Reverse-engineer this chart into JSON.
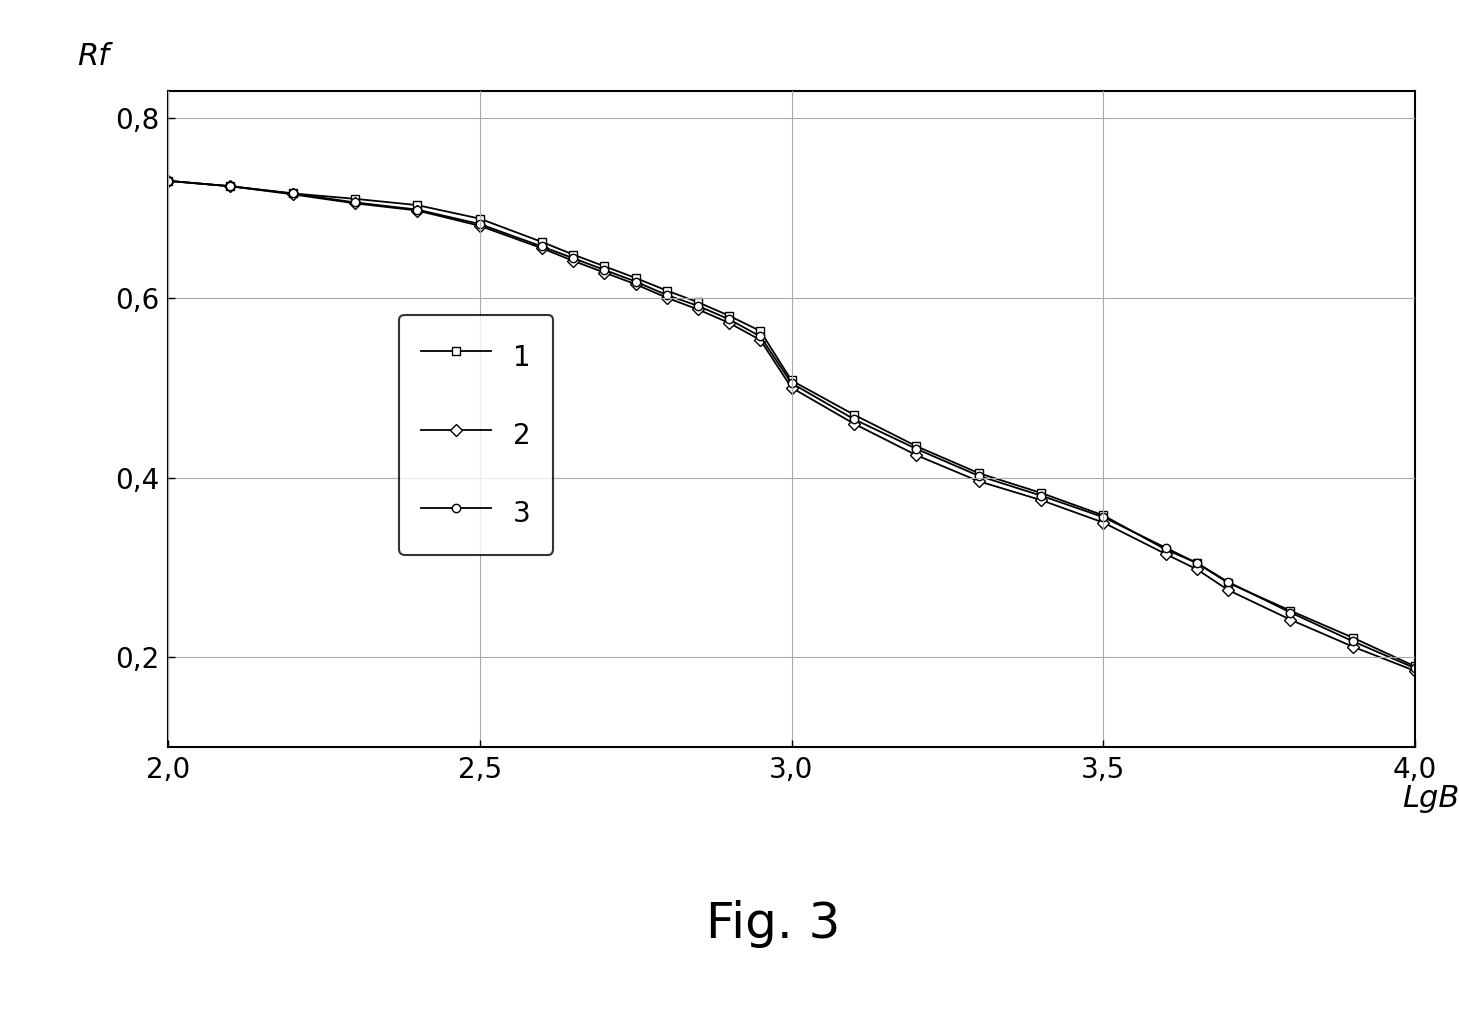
{
  "title": "Fig. 3",
  "xlabel": "LgBP",
  "ylabel": "Rf",
  "xlim": [
    2.0,
    4.0
  ],
  "ylim": [
    0.1,
    0.83
  ],
  "xticks": [
    2.0,
    2.5,
    3.0,
    3.5,
    4.0
  ],
  "yticks": [
    0.2,
    0.4,
    0.6,
    0.8
  ],
  "xtick_labels": [
    "2,0",
    "2,5",
    "3,0",
    "3,5",
    "4,0"
  ],
  "ytick_labels": [
    "0,2",
    "0,4",
    "0,6",
    "0,8"
  ],
  "line1_x": [
    2.0,
    2.1,
    2.2,
    2.3,
    2.4,
    2.5,
    2.6,
    2.65,
    2.7,
    2.75,
    2.8,
    2.85,
    2.9,
    2.95,
    3.0,
    3.1,
    3.2,
    3.3,
    3.4,
    3.5,
    3.6,
    3.65,
    3.7,
    3.8,
    3.9,
    4.0
  ],
  "line1_y": [
    0.73,
    0.724,
    0.716,
    0.71,
    0.703,
    0.688,
    0.662,
    0.648,
    0.635,
    0.622,
    0.608,
    0.595,
    0.58,
    0.563,
    0.508,
    0.47,
    0.435,
    0.405,
    0.383,
    0.358,
    0.32,
    0.305,
    0.283,
    0.252,
    0.222,
    0.19
  ],
  "line2_x": [
    2.0,
    2.1,
    2.2,
    2.3,
    2.4,
    2.5,
    2.6,
    2.65,
    2.7,
    2.75,
    2.8,
    2.85,
    2.9,
    2.95,
    3.0,
    3.1,
    3.2,
    3.3,
    3.4,
    3.5,
    3.6,
    3.65,
    3.7,
    3.8,
    3.9,
    4.0
  ],
  "line2_y": [
    0.73,
    0.724,
    0.715,
    0.705,
    0.697,
    0.68,
    0.655,
    0.641,
    0.628,
    0.615,
    0.6,
    0.587,
    0.572,
    0.553,
    0.5,
    0.46,
    0.425,
    0.396,
    0.375,
    0.35,
    0.315,
    0.298,
    0.275,
    0.242,
    0.212,
    0.185
  ],
  "line3_x": [
    2.0,
    2.1,
    2.2,
    2.3,
    2.4,
    2.5,
    2.6,
    2.65,
    2.7,
    2.75,
    2.8,
    2.85,
    2.9,
    2.95,
    3.0,
    3.1,
    3.2,
    3.3,
    3.4,
    3.5,
    3.6,
    3.65,
    3.7,
    3.8,
    3.9,
    4.0
  ],
  "line3_y": [
    0.73,
    0.724,
    0.716,
    0.706,
    0.698,
    0.682,
    0.657,
    0.644,
    0.631,
    0.618,
    0.603,
    0.591,
    0.576,
    0.557,
    0.505,
    0.465,
    0.432,
    0.402,
    0.38,
    0.356,
    0.322,
    0.305,
    0.284,
    0.25,
    0.218,
    0.188
  ],
  "line_color": "#000000",
  "marker1": "s",
  "marker2": "D",
  "marker3": "o",
  "markersize": 6,
  "linewidth": 1.3,
  "legend_labels": [
    "1",
    "2",
    "3"
  ],
  "background_color": "#ffffff",
  "grid_color": "#aaaaaa"
}
